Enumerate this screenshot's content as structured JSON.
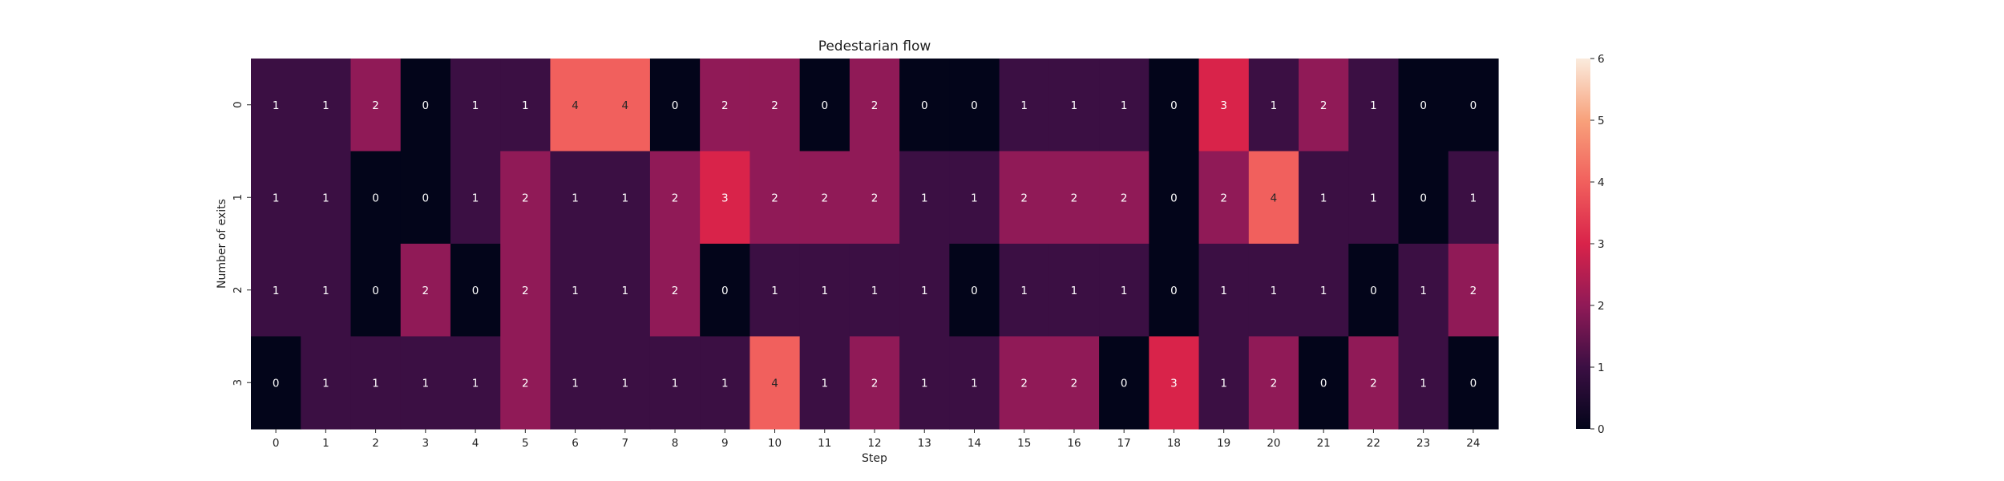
{
  "chart_data": {
    "type": "heatmap",
    "title": "Pedestarian flow",
    "xlabel": "Step",
    "ylabel": "Number of exits",
    "x": [
      "0",
      "1",
      "2",
      "3",
      "4",
      "5",
      "6",
      "7",
      "8",
      "9",
      "10",
      "11",
      "12",
      "13",
      "14",
      "15",
      "16",
      "17",
      "18",
      "19",
      "20",
      "21",
      "22",
      "23",
      "24"
    ],
    "y": [
      "0",
      "1",
      "2",
      "3"
    ],
    "values": [
      [
        1,
        1,
        2,
        0,
        1,
        1,
        4,
        4,
        0,
        2,
        2,
        0,
        2,
        0,
        0,
        1,
        1,
        1,
        0,
        3,
        1,
        2,
        1,
        0,
        0
      ],
      [
        1,
        1,
        0,
        0,
        1,
        2,
        1,
        1,
        2,
        3,
        2,
        2,
        2,
        1,
        1,
        2,
        2,
        2,
        0,
        2,
        4,
        1,
        1,
        0,
        1
      ],
      [
        1,
        1,
        0,
        2,
        0,
        2,
        1,
        1,
        2,
        0,
        1,
        1,
        1,
        1,
        0,
        1,
        1,
        1,
        0,
        1,
        1,
        1,
        0,
        1,
        2
      ],
      [
        0,
        1,
        1,
        1,
        1,
        2,
        1,
        1,
        1,
        1,
        4,
        1,
        2,
        1,
        1,
        2,
        2,
        0,
        3,
        1,
        2,
        0,
        2,
        1,
        0
      ]
    ],
    "colorbar": {
      "min": 0,
      "max": 6,
      "ticks": [
        "0",
        "1",
        "2",
        "3",
        "4",
        "5",
        "6"
      ]
    },
    "colormap": [
      "#03051a",
      "#3b0f43",
      "#901a57",
      "#d9234a",
      "#f1605d",
      "#f8a17b",
      "#faebdd"
    ],
    "annotate": true
  }
}
